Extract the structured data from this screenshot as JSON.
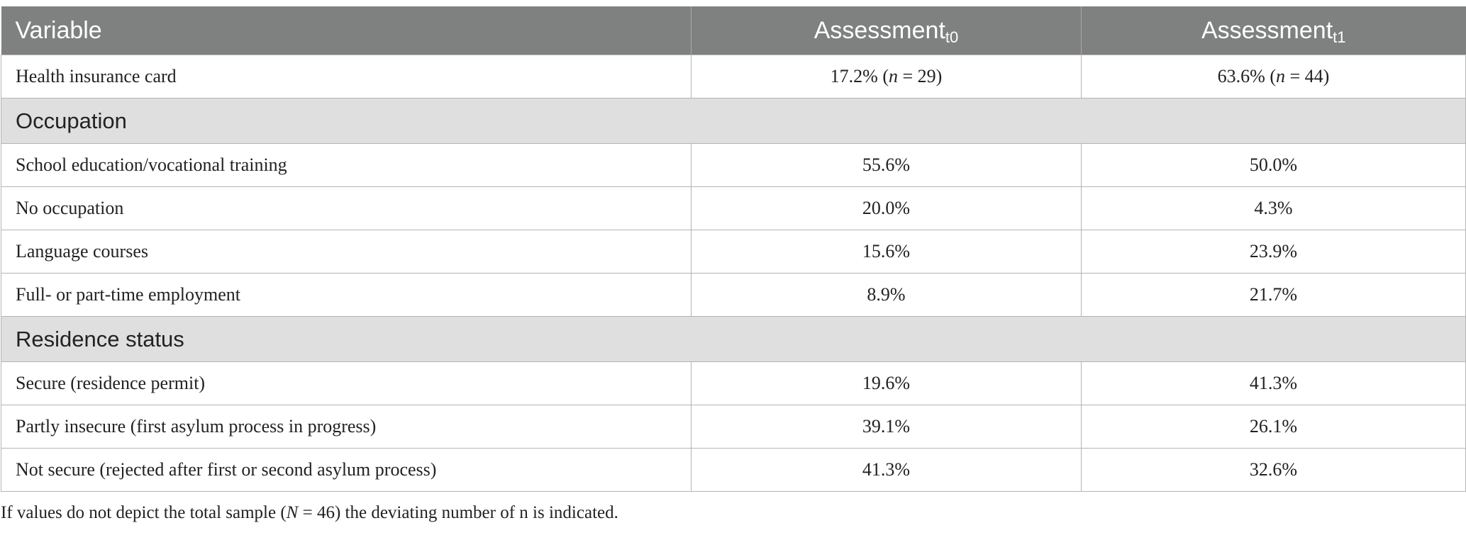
{
  "header": {
    "col1": "Variable",
    "col2_main": "Assessment",
    "col2_sub": "t0",
    "col3_main": "Assessment",
    "col3_sub": "t1"
  },
  "rows": {
    "health_insurance": {
      "label": "Health insurance card",
      "t0_pct": "17.2%",
      "t0_n": "29",
      "t1_pct": "63.6%",
      "t1_n": "44"
    },
    "occupation": {
      "title": "Occupation",
      "items": [
        {
          "label": "School education/vocational training",
          "t0": "55.6%",
          "t1": "50.0%"
        },
        {
          "label": "No occupation",
          "t0": "20.0%",
          "t1": "4.3%"
        },
        {
          "label": "Language courses",
          "t0": "15.6%",
          "t1": "23.9%"
        },
        {
          "label": "Full- or part-time employment",
          "t0": "8.9%",
          "t1": "21.7%"
        }
      ]
    },
    "residence": {
      "title": "Residence status",
      "items": [
        {
          "label": "Secure (residence permit)",
          "t0": "19.6%",
          "t1": "41.3%"
        },
        {
          "label": "Partly insecure (first asylum process in progress)",
          "t0": "39.1%",
          "t1": "26.1%"
        },
        {
          "label": "Not secure (rejected after first or second asylum process)",
          "t0": "41.3%",
          "t1": "32.6%"
        }
      ]
    }
  },
  "footnote": {
    "before": "If values do not depict the total sample (",
    "N_symbol": "N",
    "N_value": "46",
    "after": ") the deviating number of n is indicated."
  }
}
